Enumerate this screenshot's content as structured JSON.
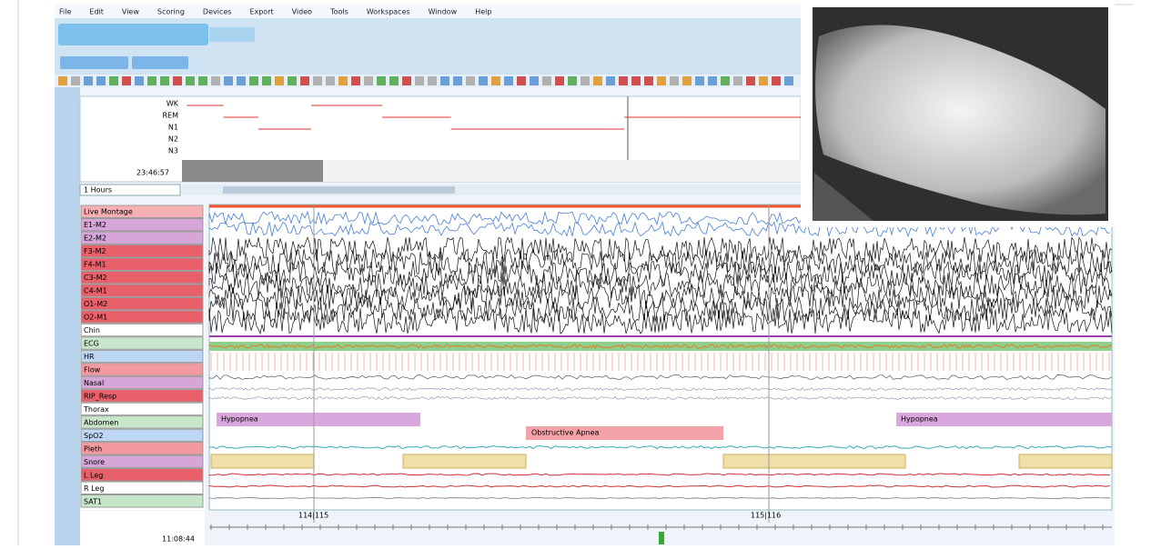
{
  "menu": [
    "File",
    "Edit",
    "View",
    "Scoring",
    "Devices",
    "Export",
    "Video",
    "Tools",
    "Workspaces",
    "Window",
    "Help"
  ],
  "overview": {
    "stages": [
      "WK",
      "REM",
      "N1",
      "N2",
      "N3"
    ],
    "start_time": "23:46:57",
    "zoom": "1 Hours"
  },
  "channels": [
    "Live Montage",
    "E1-M2",
    "E2-M2",
    "F3-M2",
    "F4-M1",
    "C3-M2",
    "C4-M1",
    "O1-M2",
    "O2-M1",
    "Chin",
    "ECG",
    "HR",
    "Flow",
    "Nasal",
    "RIP_Resp",
    "Thorax",
    "Abdomen",
    "SpO2",
    "Pleth",
    "Snore",
    "L Leg",
    "R Leg",
    "SAT1"
  ],
  "events": [
    "Hypopnea",
    "Obstructive Apnea",
    "Hypopnea"
  ],
  "epochs": [
    "114|115",
    "115|116"
  ],
  "bottom_time": "11:08:44"
}
